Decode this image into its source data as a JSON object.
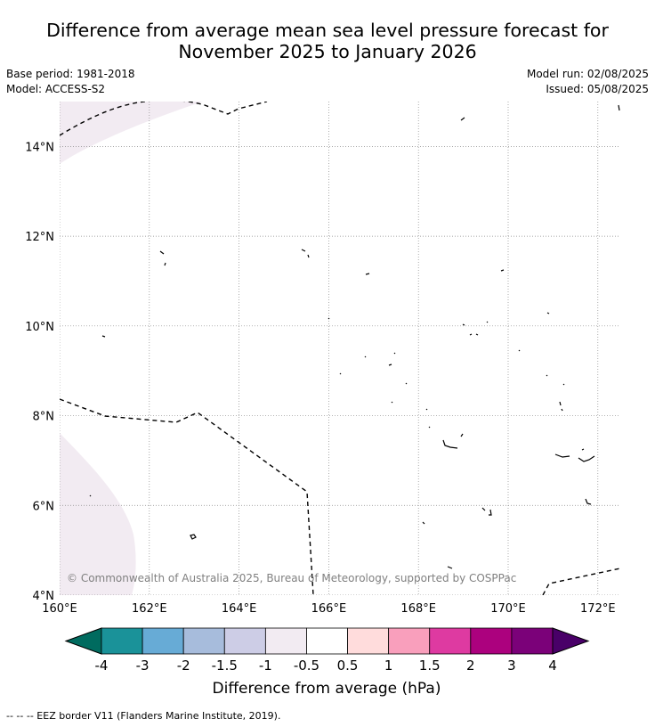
{
  "header": {
    "title_line1": "Difference from average mean sea level pressure forecast for",
    "title_line2": "November 2025 to January 2026",
    "base_period": "Base period: 1981-2018",
    "model": "Model: ACCESS-S2",
    "model_run": "Model run: 02/08/2025",
    "issued": "Issued: 05/08/2025"
  },
  "map": {
    "lon_range": [
      160,
      172.5
    ],
    "lat_range": [
      4,
      15
    ],
    "lat_labels": [
      "14°N",
      "12°N",
      "10°N",
      "8°N",
      "6°N",
      "4°N"
    ],
    "lon_labels": [
      "160°E",
      "162°E",
      "164°E",
      "166°E",
      "168°E",
      "170°E",
      "172°E"
    ],
    "copyright": "© Commonwealth of Australia 2025, Bureau of Meteorology, supported by COSPPac",
    "anomaly_fill_color": "#f2ebf2",
    "grid": true
  },
  "colorbar": {
    "label": "Difference from average (hPa)",
    "ticks": [
      "-4",
      "-3",
      "-2",
      "-1.5",
      "-1",
      "-0.5",
      "0.5",
      "1",
      "1.5",
      "2",
      "3",
      "4"
    ],
    "colors": [
      "#006b5f",
      "#1a9299",
      "#67abd6",
      "#a7bcdc",
      "#cdcde6",
      "#f2ebf2",
      "#ffffff",
      "#ffdcdc",
      "#f99fbc",
      "#de3aa1",
      "#ac017e",
      "#7b0179",
      "#490068"
    ]
  },
  "footer": {
    "legend_text": "--  --  -- EEZ border V11 (Flanders Marine Institute, 2019)."
  }
}
